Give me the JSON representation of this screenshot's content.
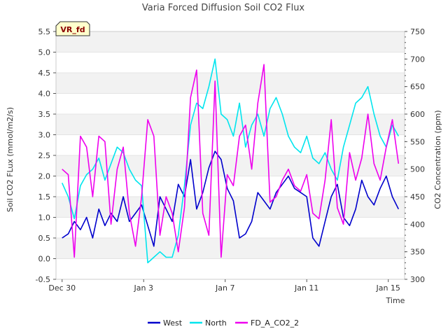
{
  "chart_data": {
    "type": "line",
    "title": "Varia Forced Diffusion Soil CO2 Flux",
    "badge": "VR_fd",
    "xlabel": "Time",
    "ylabel": "Soil CO2 FLux (mmol/m2/s)",
    "y2label": "CO2 Concentration (ppm)",
    "xlim": [
      -0.3,
      16.8
    ],
    "ylim": [
      -0.5,
      5.5
    ],
    "y2lim": [
      300,
      750
    ],
    "x_ticks": [
      {
        "value": 0,
        "label": "Dec 30"
      },
      {
        "value": 4,
        "label": "Jan 3"
      },
      {
        "value": 8,
        "label": "Jan 7"
      },
      {
        "value": 12,
        "label": "Jan 11"
      },
      {
        "value": 16,
        "label": "Jan 15"
      }
    ],
    "y_ticks": [
      {
        "value": -0.5,
        "label": "-0.5"
      },
      {
        "value": 0.0,
        "label": "0.0"
      },
      {
        "value": 0.5,
        "label": "0.5"
      },
      {
        "value": 1.0,
        "label": "1.0"
      },
      {
        "value": 1.5,
        "label": "1.5"
      },
      {
        "value": 2.0,
        "label": "2.0"
      },
      {
        "value": 2.5,
        "label": "2.5"
      },
      {
        "value": 3.0,
        "label": "3.0"
      },
      {
        "value": 3.5,
        "label": "3.5"
      },
      {
        "value": 4.0,
        "label": "4.0"
      },
      {
        "value": 4.5,
        "label": "4.5"
      },
      {
        "value": 5.0,
        "label": "5.0"
      },
      {
        "value": 5.5,
        "label": "5.5"
      }
    ],
    "y2_ticks": [
      {
        "value": 300,
        "label": "300"
      },
      {
        "value": 350,
        "label": "350"
      },
      {
        "value": 400,
        "label": "400"
      },
      {
        "value": 450,
        "label": "450"
      },
      {
        "value": 500,
        "label": "500"
      },
      {
        "value": 550,
        "label": "550"
      },
      {
        "value": 600,
        "label": "600"
      },
      {
        "value": 650,
        "label": "650"
      },
      {
        "value": 700,
        "label": "700"
      },
      {
        "value": 750,
        "label": "750"
      }
    ],
    "grid": true,
    "legend_position": "bottom-center",
    "series": [
      {
        "name": "West",
        "color": "#0000cc",
        "axis": "left",
        "x": [
          0.0,
          0.3,
          0.6,
          0.9,
          1.2,
          1.5,
          1.8,
          2.1,
          2.4,
          2.7,
          3.0,
          3.3,
          3.6,
          3.9,
          4.2,
          4.5,
          4.8,
          5.1,
          5.4,
          5.7,
          6.0,
          6.3,
          6.6,
          6.9,
          7.2,
          7.5,
          7.8,
          8.1,
          8.4,
          8.7,
          9.0,
          9.3,
          9.6,
          9.9,
          10.2,
          10.5,
          10.8,
          11.1,
          11.4,
          11.7,
          12.0,
          12.3,
          12.6,
          12.9,
          13.2,
          13.5,
          13.8,
          14.1,
          14.4,
          14.7,
          15.0,
          15.3,
          15.6,
          15.9,
          16.2,
          16.5
        ],
        "y": [
          0.5,
          0.6,
          0.9,
          0.7,
          1.0,
          0.5,
          1.2,
          0.8,
          1.1,
          0.9,
          1.5,
          0.9,
          1.1,
          1.3,
          0.8,
          0.3,
          1.5,
          1.2,
          0.9,
          1.8,
          1.5,
          2.4,
          1.2,
          1.6,
          2.2,
          2.6,
          2.4,
          1.7,
          1.4,
          0.5,
          0.6,
          0.9,
          1.6,
          1.4,
          1.2,
          1.6,
          1.8,
          2.0,
          1.7,
          1.6,
          1.5,
          0.5,
          0.3,
          0.9,
          1.5,
          1.8,
          1.0,
          0.8,
          1.2,
          1.9,
          1.5,
          1.3,
          1.7,
          2.0,
          1.5,
          1.2
        ]
      },
      {
        "name": "North",
        "color": "#00e5ee",
        "axis": "right",
        "x": [
          0.0,
          0.3,
          0.6,
          0.9,
          1.2,
          1.5,
          1.8,
          2.1,
          2.4,
          2.7,
          3.0,
          3.3,
          3.6,
          3.9,
          4.2,
          4.5,
          4.8,
          5.1,
          5.4,
          5.7,
          6.0,
          6.3,
          6.6,
          6.9,
          7.2,
          7.5,
          7.8,
          8.1,
          8.4,
          8.7,
          9.0,
          9.3,
          9.6,
          9.9,
          10.2,
          10.5,
          10.8,
          11.1,
          11.4,
          11.7,
          12.0,
          12.3,
          12.6,
          12.9,
          13.2,
          13.5,
          13.8,
          14.1,
          14.4,
          14.7,
          15.0,
          15.3,
          15.6,
          15.9,
          16.2,
          16.5
        ],
        "y": [
          475,
          450,
          410,
          470,
          490,
          500,
          520,
          480,
          510,
          540,
          530,
          500,
          480,
          470,
          330,
          340,
          350,
          340,
          340,
          380,
          470,
          580,
          620,
          610,
          650,
          700,
          600,
          590,
          560,
          620,
          540,
          580,
          600,
          560,
          610,
          630,
          600,
          560,
          540,
          530,
          560,
          520,
          510,
          530,
          500,
          480,
          540,
          580,
          620,
          630,
          650,
          600,
          560,
          540,
          580,
          560
        ]
      },
      {
        "name": "FD_A_CO2_2",
        "color": "#ee00ee",
        "axis": "right",
        "x": [
          0.0,
          0.3,
          0.6,
          0.9,
          1.2,
          1.5,
          1.8,
          2.1,
          2.4,
          2.7,
          3.0,
          3.3,
          3.6,
          3.9,
          4.2,
          4.5,
          4.8,
          5.1,
          5.4,
          5.7,
          6.0,
          6.3,
          6.6,
          6.9,
          7.2,
          7.5,
          7.8,
          8.1,
          8.4,
          8.7,
          9.0,
          9.3,
          9.6,
          9.9,
          10.2,
          10.5,
          10.8,
          11.1,
          11.4,
          11.7,
          12.0,
          12.3,
          12.6,
          12.9,
          13.2,
          13.5,
          13.8,
          14.1,
          14.4,
          14.7,
          15.0,
          15.3,
          15.6,
          15.9,
          16.2,
          16.5
        ],
        "y": [
          500,
          490,
          340,
          560,
          540,
          450,
          560,
          550,
          400,
          500,
          540,
          420,
          360,
          450,
          590,
          560,
          380,
          450,
          420,
          350,
          430,
          630,
          680,
          420,
          380,
          660,
          340,
          490,
          470,
          560,
          580,
          500,
          620,
          690,
          440,
          450,
          480,
          500,
          470,
          460,
          490,
          420,
          410,
          480,
          590,
          430,
          400,
          530,
          480,
          520,
          600,
          510,
          480,
          540,
          590,
          510
        ]
      }
    ]
  }
}
